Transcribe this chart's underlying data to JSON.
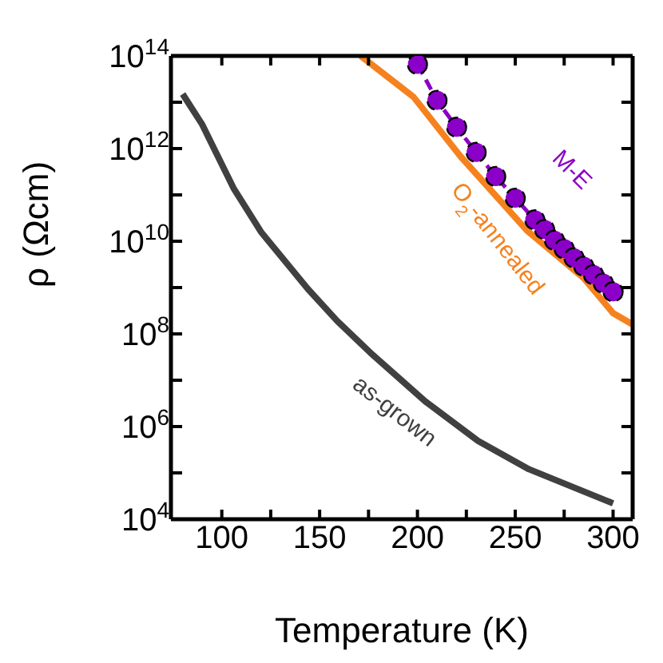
{
  "chart_data": {
    "type": "line",
    "xlabel": "Temperature (K)",
    "ylabel": "ρ (Ωcm)",
    "log": "y",
    "xlim": [
      74,
      310
    ],
    "ylim": [
      10000,
      100000000000000
    ],
    "xticks": [
      100,
      {
        "value": 125,
        "label": null
      },
      150,
      {
        "value": 175,
        "label": null
      },
      200,
      {
        "value": 225,
        "label": null
      },
      250,
      {
        "value": 275,
        "label": null
      },
      300
    ],
    "yticks": [
      {
        "value": 10000,
        "label": "10$^{4}$"
      },
      {
        "value": 100000,
        "label": null
      },
      {
        "value": 1000000,
        "label": "10$^{6}$"
      },
      {
        "value": 10000000,
        "label": null
      },
      {
        "value": 100000000,
        "label": "10$^{8}$"
      },
      {
        "value": 1000000000,
        "label": null
      },
      {
        "value": 10000000000,
        "label": "10$^{10}$"
      },
      {
        "value": 100000000000,
        "label": null
      },
      {
        "value": 1000000000000,
        "label": "10$^{12}$"
      },
      {
        "value": 10000000000000,
        "label": null
      },
      {
        "value": 100000000000000,
        "label": "10$^{14}$"
      }
    ],
    "series": [
      {
        "name": "as-grown",
        "color": "#404040",
        "marker": "none",
        "line_style": "solid",
        "x": [
          80,
          90,
          106,
          120,
          144,
          159,
          176,
          204,
          231,
          257,
          300
        ],
        "values": [
          15000000000000,
          3300000000000,
          140000000000,
          16000000000,
          930000000,
          190000000,
          39000000,
          3500000,
          490000,
          120000,
          22000
        ]
      },
      {
        "name": "O$_{2}$-annealed",
        "color": "#f5821f",
        "marker": "none",
        "line_style": "solid",
        "x": [
          171,
          198,
          222,
          256,
          285,
          300,
          310
        ],
        "values": [
          100000000000000,
          13000000000000,
          680000000000,
          17000000000,
          1600000000,
          280000000,
          160000000
        ]
      },
      {
        "name": "M-E",
        "color": "#8b00c8",
        "marker": "circle",
        "line_style": "dashed",
        "x": [
          200,
          210,
          220,
          230,
          240,
          250,
          260,
          265,
          270,
          275,
          280,
          285,
          290,
          295,
          300
        ],
        "values": [
          66000000000000,
          11000000000000,
          2900000000000,
          830000000000,
          250000000000,
          85000000000,
          29000000000,
          18000000000,
          10500000000,
          6900000000,
          4400000000,
          2900000000,
          1900000000,
          1250000000,
          810000000
        ]
      }
    ]
  }
}
